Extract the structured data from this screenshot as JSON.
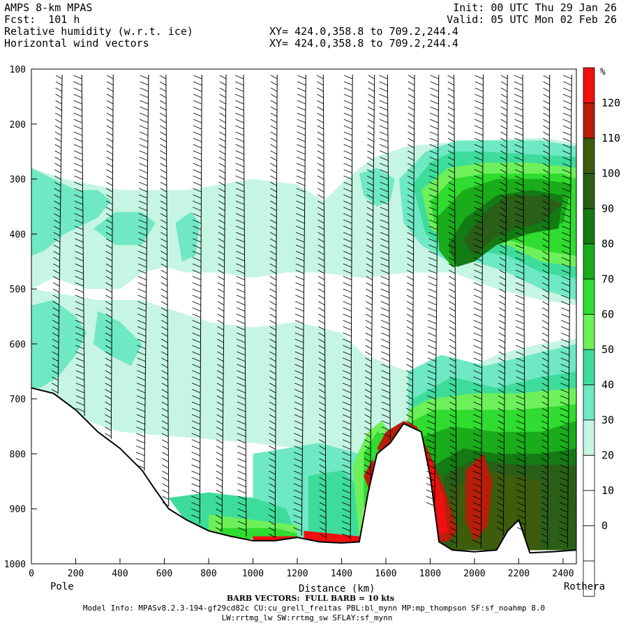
{
  "header": {
    "title": "AMPS 8-km MPAS",
    "forecast": "Fcst:  101 h",
    "field1": "Relative humidity (w.r.t. ice)",
    "field2": "Horizontal wind vectors",
    "xy1": "XY= 424.0,358.8 to 709.2,244.4",
    "xy2": "XY= 424.0,358.8 to 709.2,244.4",
    "init": "Init: 00 UTC Thu 29 Jan 26",
    "valid": "Valid: 05 UTC Mon 02 Feb 26"
  },
  "footer": {
    "barb_note": "BARB VECTORS:  FULL BARB = 10 kts",
    "model_info_1": "Model Info: MPASv8.2.3-194-gf29cd82c CU:cu_grell_freitas PBL:bl_mynn MP:mp_thompson SF:sf_noahmp 8.0",
    "model_info_2": "LW:rrtmg_lw SW:rrtmg_sw SFLAY:sf_mynn"
  },
  "colors": {
    "c30": "#c6f5e3",
    "c40": "#6fe8c4",
    "c50": "#3ddc9a",
    "c60": "#6ef05a",
    "c70": "#2fdc2f",
    "c80": "#1aac1a",
    "c90": "#147a14",
    "c100": "#2a5f18",
    "c110": "#3d5c0c",
    "c120": "#b81e0a",
    "c130": "#f01010",
    "terrain": "#ffffff",
    "barb": "#000000"
  },
  "chart_data": {
    "type": "heatmap",
    "title": "Relative humidity (w.r.t. ice)",
    "xlabel": "Distance (km)",
    "ylabel": "",
    "x_start_label": "Pole",
    "x_end_label": "Rothera",
    "xlim": [
      0,
      2460
    ],
    "ylim": [
      1000,
      100
    ],
    "x_ticks": [
      "0",
      "200",
      "400",
      "600",
      "800",
      "1000",
      "1200",
      "1400",
      "1600",
      "1800",
      "2000",
      "2200",
      "2400"
    ],
    "y_ticks": [
      "100",
      "200",
      "300",
      "400",
      "500",
      "600",
      "700",
      "800",
      "900",
      "1000"
    ],
    "colorbar": {
      "unit": "%",
      "levels": [
        "120",
        "110",
        "100",
        "90",
        "80",
        "70",
        "60",
        "50",
        "40",
        "30",
        "20",
        "10",
        "0"
      ]
    },
    "terrain_surface_hPa": [
      [
        0,
        680
      ],
      [
        100,
        690
      ],
      [
        200,
        720
      ],
      [
        300,
        760
      ],
      [
        400,
        790
      ],
      [
        500,
        830
      ],
      [
        550,
        860
      ],
      [
        620,
        900
      ],
      [
        700,
        920
      ],
      [
        800,
        940
      ],
      [
        900,
        950
      ],
      [
        1000,
        958
      ],
      [
        1100,
        958
      ],
      [
        1200,
        952
      ],
      [
        1300,
        960
      ],
      [
        1400,
        962
      ],
      [
        1480,
        960
      ],
      [
        1520,
        870
      ],
      [
        1560,
        800
      ],
      [
        1620,
        780
      ],
      [
        1680,
        745
      ],
      [
        1760,
        760
      ],
      [
        1800,
        840
      ],
      [
        1840,
        960
      ],
      [
        1900,
        975
      ],
      [
        2000,
        978
      ],
      [
        2100,
        975
      ],
      [
        2150,
        940
      ],
      [
        2200,
        920
      ],
      [
        2250,
        980
      ],
      [
        2350,
        978
      ],
      [
        2460,
        975
      ]
    ]
  }
}
